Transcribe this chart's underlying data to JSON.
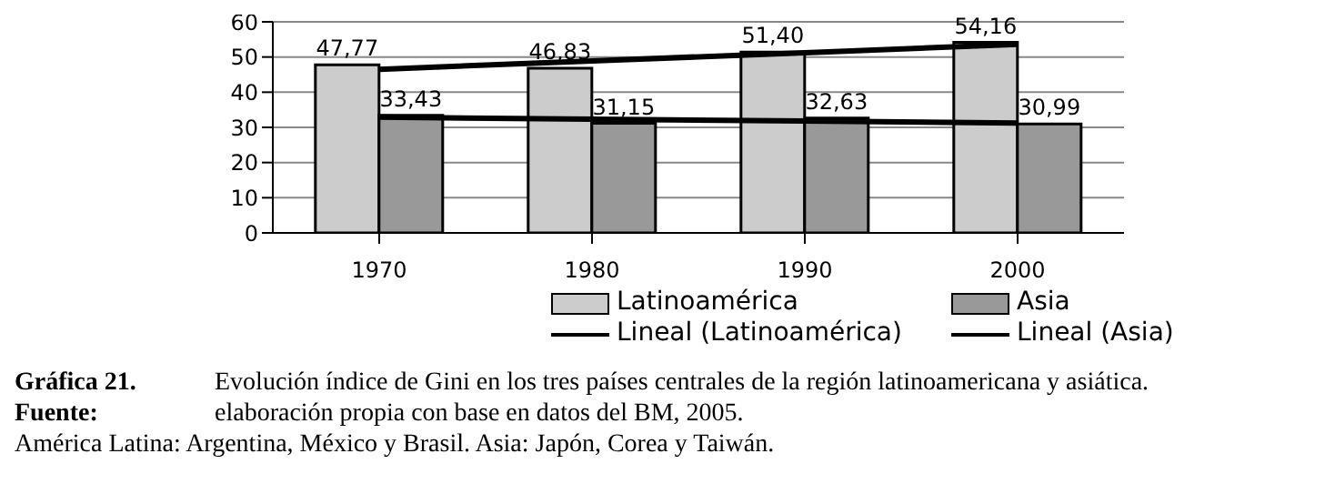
{
  "chart_data": {
    "type": "bar",
    "title": "Gráfica 21.",
    "subtitle": "Evolución índice de Gini en los tres países centrales de la región latinoamericana y asiática.",
    "annotations": [
      "Fuente:",
      "elaboración propia con base en datos del BM, 2005.",
      "América Latina: Argentina, México y Brasil.  Asia: Japón, Corea y Taiwán."
    ],
    "categories": [
      "1970",
      "1980",
      "1990",
      "2000"
    ],
    "series": [
      {
        "name": "Latinoamérica",
        "color": "#cccccc",
        "values": [
          47.77,
          46.83,
          51.4,
          54.16
        ],
        "value_labels": [
          "47,77",
          "46,83",
          "51,40",
          "54,16"
        ]
      },
      {
        "name": "Asia",
        "color": "#999999",
        "values": [
          33.43,
          31.15,
          32.63,
          30.99
        ],
        "value_labels": [
          "33,43",
          "31,15",
          "32,63",
          "30,99"
        ]
      },
      {
        "name": "Lineal (Latinoamérica)",
        "type": "line",
        "color": "#000000",
        "values": [
          46.5,
          48.9,
          51.2,
          53.6
        ]
      },
      {
        "name": "Lineal (Asia)",
        "type": "line",
        "color": "#000000",
        "values": [
          32.9,
          32.3,
          31.8,
          31.2
        ]
      }
    ],
    "ylim": [
      0,
      60
    ],
    "yticks": [
      0,
      10,
      20,
      30,
      40,
      50,
      60
    ],
    "grid": "y",
    "legend": "bottom",
    "marker": "none",
    "line_style": "solid"
  }
}
